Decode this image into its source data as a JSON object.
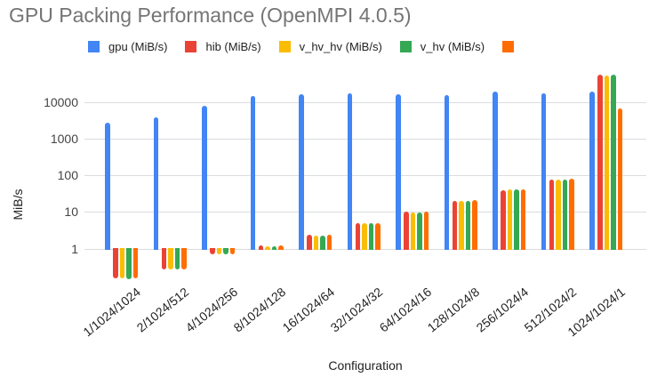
{
  "chart_data": {
    "type": "bar",
    "title": "GPU Packing Performance (OpenMPI 4.0.5)",
    "xlabel": "Configuration",
    "ylabel": "MiB/s",
    "y_scale": "log",
    "y_ticks": [
      1,
      10,
      100,
      1000,
      10000
    ],
    "ylim": [
      0.13,
      60000
    ],
    "grid": true,
    "legend_position": "top",
    "categories": [
      "1/1024/1024",
      "2/1024/512",
      "4/1024/256",
      "8/1024/128",
      "16/1024/64",
      "32/1024/32",
      "64/1024/16",
      "128/1024/8",
      "256/1024/4",
      "512/1024/2",
      "1024/1024/1"
    ],
    "series": [
      {
        "name": "gpu (MiB/s)",
        "color": "#4285F4",
        "values": [
          2700,
          3800,
          8000,
          14500,
          16000,
          17000,
          16000,
          15500,
          19000,
          17000,
          19000
        ]
      },
      {
        "name": "hib (MiB/s)",
        "color": "#EA4335",
        "values": [
          0.16,
          0.28,
          0.72,
          1.2,
          2.4,
          4.9,
          10,
          20,
          38,
          75,
          55000
        ]
      },
      {
        "name": "v_hv_hv (MiB/s)",
        "color": "#FBBC04",
        "values": [
          0.16,
          0.28,
          0.7,
          1.15,
          2.3,
          4.8,
          9.8,
          20,
          40,
          77,
          53000
        ]
      },
      {
        "name": "v_hv (MiB/s)",
        "color": "#34A853",
        "values": [
          0.15,
          0.27,
          0.7,
          1.15,
          2.3,
          4.8,
          9.8,
          20,
          40,
          77,
          56000
        ]
      },
      {
        "name": "",
        "color": "#FF6D01",
        "values": [
          0.16,
          0.28,
          0.72,
          1.2,
          2.4,
          5.0,
          10,
          21,
          42,
          80,
          6500
        ]
      }
    ]
  }
}
